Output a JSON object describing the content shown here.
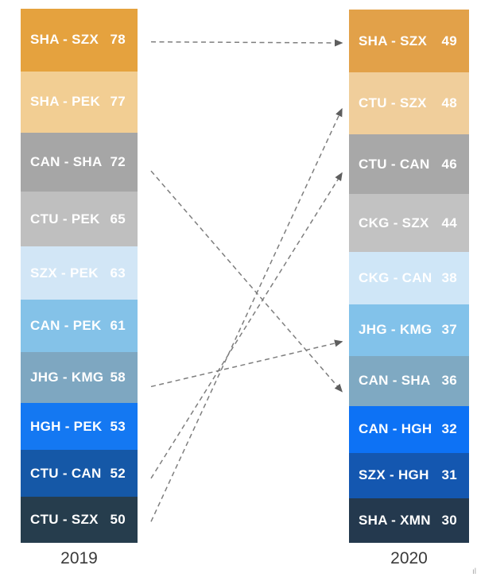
{
  "chart_data": {
    "type": "bar",
    "subtype": "ranked-route-comparison-columns",
    "title": "",
    "orientation": "vertical-stacked",
    "text_color": "#FFFFFF",
    "label_color": "#3A3A3A",
    "arrow_color": "#7E7E7E",
    "arrowhead_color": "#5E5E5E",
    "columns": [
      {
        "year": "2019",
        "items": [
          {
            "route": "SHA - SZX",
            "value": 78,
            "color": "#E5A23E"
          },
          {
            "route": "SHA - PEK",
            "value": 77,
            "color": "#F2CE93"
          },
          {
            "route": "CAN - SHA",
            "value": 72,
            "color": "#A6A6A6"
          },
          {
            "route": "CTU - PEK",
            "value": 65,
            "color": "#BFBFBF"
          },
          {
            "route": "SZX - PEK",
            "value": 63,
            "color": "#D2E6F6"
          },
          {
            "route": "CAN - PEK",
            "value": 61,
            "color": "#84C2E8"
          },
          {
            "route": "JHG - KMG",
            "value": 58,
            "color": "#7EA7C1"
          },
          {
            "route": "HGH - PEK",
            "value": 53,
            "color": "#1478F2"
          },
          {
            "route": "CTU - CAN",
            "value": 52,
            "color": "#1558A7"
          },
          {
            "route": "CTU - SZX",
            "value": 50,
            "color": "#263D4D"
          }
        ]
      },
      {
        "year": "2020",
        "items": [
          {
            "route": "SHA - SZX",
            "value": 49,
            "color": "#E2A149"
          },
          {
            "route": "CTU - SZX",
            "value": 48,
            "color": "#F0CE9B"
          },
          {
            "route": "CTU - CAN",
            "value": 46,
            "color": "#A8A8A8"
          },
          {
            "route": "CKG - SZX",
            "value": 44,
            "color": "#C2C2C2"
          },
          {
            "route": "CKG - CAN",
            "value": 38,
            "color": "#CFE6F7"
          },
          {
            "route": "JHG - KMG",
            "value": 37,
            "color": "#82C2EA"
          },
          {
            "route": "CAN - SHA",
            "value": 36,
            "color": "#7FA9C2"
          },
          {
            "route": "CAN - HGH",
            "value": 32,
            "color": "#0D72F5"
          },
          {
            "route": "SZX - HGH",
            "value": 31,
            "color": "#1457B0"
          },
          {
            "route": "SHA - XMN",
            "value": 30,
            "color": "#24394E"
          }
        ]
      }
    ],
    "connections": [
      {
        "from": "SHA - SZX",
        "to": "SHA - SZX"
      },
      {
        "from": "CAN - SHA",
        "to": "CAN - SHA"
      },
      {
        "from": "JHG - KMG",
        "to": "JHG - KMG"
      },
      {
        "from": "CTU - CAN",
        "to": "CTU - CAN"
      },
      {
        "from": "CTU - SZX",
        "to": "CTU - SZX"
      }
    ]
  },
  "corner_mark": "ıl"
}
